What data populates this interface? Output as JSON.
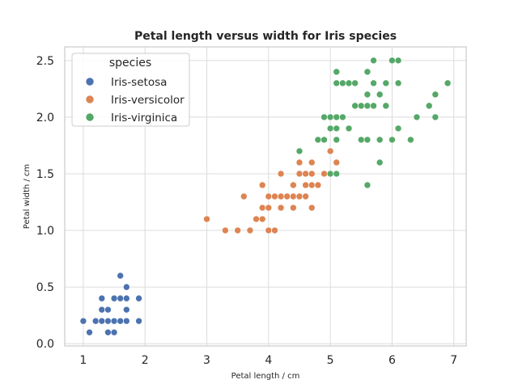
{
  "chart_data": {
    "type": "scatter",
    "title": "Petal length versus width for Iris species",
    "xlabel": "Petal length / cm",
    "ylabel": "Petal width / cm",
    "xlim": [
      0.7,
      7.2
    ],
    "ylim": [
      -0.02,
      2.62
    ],
    "x_ticks": [
      1,
      2,
      3,
      4,
      5,
      6,
      7
    ],
    "y_ticks": [
      0.0,
      0.5,
      1.0,
      1.5,
      2.0,
      2.5
    ],
    "grid": true,
    "legend": {
      "title": "species",
      "placement": "top-left"
    },
    "series": [
      {
        "name": "Iris-setosa",
        "color": "#4c72b0",
        "points": [
          [
            1.0,
            0.2
          ],
          [
            1.1,
            0.1
          ],
          [
            1.2,
            0.2
          ],
          [
            1.3,
            0.2
          ],
          [
            1.3,
            0.3
          ],
          [
            1.3,
            0.4
          ],
          [
            1.4,
            0.1
          ],
          [
            1.4,
            0.2
          ],
          [
            1.4,
            0.3
          ],
          [
            1.5,
            0.1
          ],
          [
            1.5,
            0.2
          ],
          [
            1.5,
            0.4
          ],
          [
            1.6,
            0.2
          ],
          [
            1.6,
            0.4
          ],
          [
            1.6,
            0.6
          ],
          [
            1.7,
            0.2
          ],
          [
            1.7,
            0.3
          ],
          [
            1.7,
            0.4
          ],
          [
            1.7,
            0.5
          ],
          [
            1.9,
            0.2
          ],
          [
            1.9,
            0.4
          ]
        ]
      },
      {
        "name": "Iris-versicolor",
        "color": "#dd8452",
        "points": [
          [
            3.0,
            1.1
          ],
          [
            3.3,
            1.0
          ],
          [
            3.5,
            1.0
          ],
          [
            3.6,
            1.3
          ],
          [
            3.7,
            1.0
          ],
          [
            3.8,
            1.1
          ],
          [
            3.9,
            1.1
          ],
          [
            3.9,
            1.2
          ],
          [
            3.9,
            1.4
          ],
          [
            4.0,
            1.0
          ],
          [
            4.0,
            1.2
          ],
          [
            4.0,
            1.3
          ],
          [
            4.1,
            1.0
          ],
          [
            4.1,
            1.3
          ],
          [
            4.2,
            1.2
          ],
          [
            4.2,
            1.3
          ],
          [
            4.2,
            1.5
          ],
          [
            4.3,
            1.3
          ],
          [
            4.4,
            1.2
          ],
          [
            4.4,
            1.3
          ],
          [
            4.4,
            1.4
          ],
          [
            4.5,
            1.3
          ],
          [
            4.5,
            1.5
          ],
          [
            4.5,
            1.6
          ],
          [
            4.6,
            1.3
          ],
          [
            4.6,
            1.4
          ],
          [
            4.6,
            1.5
          ],
          [
            4.7,
            1.2
          ],
          [
            4.7,
            1.4
          ],
          [
            4.7,
            1.5
          ],
          [
            4.7,
            1.6
          ],
          [
            4.8,
            1.4
          ],
          [
            4.8,
            1.8
          ],
          [
            4.9,
            1.5
          ],
          [
            5.0,
            1.7
          ],
          [
            5.1,
            1.6
          ]
        ]
      },
      {
        "name": "Iris-virginica",
        "color": "#55a868",
        "points": [
          [
            4.5,
            1.7
          ],
          [
            4.8,
            1.8
          ],
          [
            4.9,
            1.8
          ],
          [
            4.9,
            2.0
          ],
          [
            5.0,
            1.5
          ],
          [
            5.0,
            1.9
          ],
          [
            5.0,
            2.0
          ],
          [
            5.1,
            1.5
          ],
          [
            5.1,
            1.8
          ],
          [
            5.1,
            1.9
          ],
          [
            5.1,
            2.0
          ],
          [
            5.1,
            2.3
          ],
          [
            5.1,
            2.4
          ],
          [
            5.2,
            2.0
          ],
          [
            5.2,
            2.3
          ],
          [
            5.3,
            1.9
          ],
          [
            5.3,
            2.3
          ],
          [
            5.4,
            2.1
          ],
          [
            5.4,
            2.3
          ],
          [
            5.5,
            1.8
          ],
          [
            5.5,
            2.1
          ],
          [
            5.6,
            1.4
          ],
          [
            5.6,
            1.8
          ],
          [
            5.6,
            2.1
          ],
          [
            5.6,
            2.2
          ],
          [
            5.6,
            2.4
          ],
          [
            5.7,
            2.1
          ],
          [
            5.7,
            2.3
          ],
          [
            5.7,
            2.5
          ],
          [
            5.8,
            1.6
          ],
          [
            5.8,
            1.8
          ],
          [
            5.8,
            2.2
          ],
          [
            5.9,
            2.1
          ],
          [
            5.9,
            2.3
          ],
          [
            6.0,
            1.8
          ],
          [
            6.0,
            2.5
          ],
          [
            6.1,
            1.9
          ],
          [
            6.1,
            2.3
          ],
          [
            6.1,
            2.5
          ],
          [
            6.3,
            1.8
          ],
          [
            6.4,
            2.0
          ],
          [
            6.6,
            2.1
          ],
          [
            6.7,
            2.0
          ],
          [
            6.7,
            2.2
          ],
          [
            6.9,
            2.3
          ]
        ]
      }
    ]
  }
}
